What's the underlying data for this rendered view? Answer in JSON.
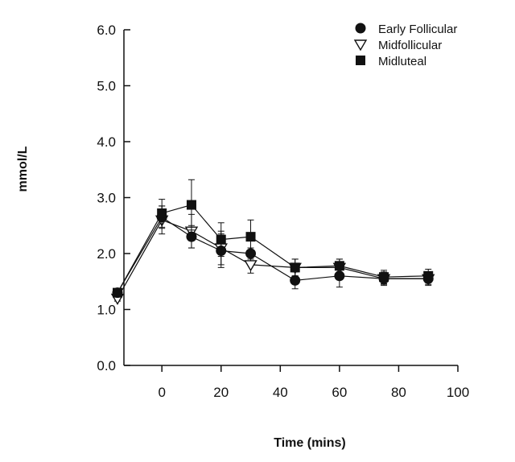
{
  "chart_data": {
    "type": "line",
    "xlabel": "Time (mins)",
    "ylabel": "mmol/L",
    "xlim": [
      -15,
      100
    ],
    "ylim": [
      0,
      6
    ],
    "x_ticks": [
      "0",
      "20",
      "40",
      "60",
      "80",
      "100"
    ],
    "y_ticks": [
      "0.0",
      "1.0",
      "2.0",
      "3.0",
      "4.0",
      "5.0",
      "6.0"
    ],
    "x": [
      -15,
      0,
      10,
      20,
      30,
      45,
      60,
      75,
      90
    ],
    "legend_position": "top-right",
    "series": [
      {
        "name": "Early Follicular",
        "marker": "filled-circle",
        "values": [
          1.3,
          2.65,
          2.3,
          2.05,
          2.0,
          1.52,
          1.6,
          1.55,
          1.55
        ],
        "errors": [
          0.05,
          0.2,
          0.2,
          0.3,
          0.1,
          0.15,
          0.2,
          0.1,
          0.1
        ]
      },
      {
        "name": "Midfollicular",
        "marker": "open-triangle-down",
        "values": [
          1.2,
          2.6,
          2.4,
          2.1,
          1.8,
          1.75,
          1.75,
          1.55,
          1.55
        ],
        "errors": [
          0.05,
          0.25,
          0.3,
          0.3,
          0.15,
          0.15,
          0.15,
          0.12,
          0.12
        ]
      },
      {
        "name": "Midluteal",
        "marker": "filled-square",
        "values": [
          1.3,
          2.72,
          2.87,
          2.25,
          2.3,
          1.75,
          1.78,
          1.58,
          1.6
        ],
        "errors": [
          0.05,
          0.25,
          0.45,
          0.3,
          0.3,
          0.15,
          0.12,
          0.12,
          0.12
        ]
      }
    ]
  }
}
